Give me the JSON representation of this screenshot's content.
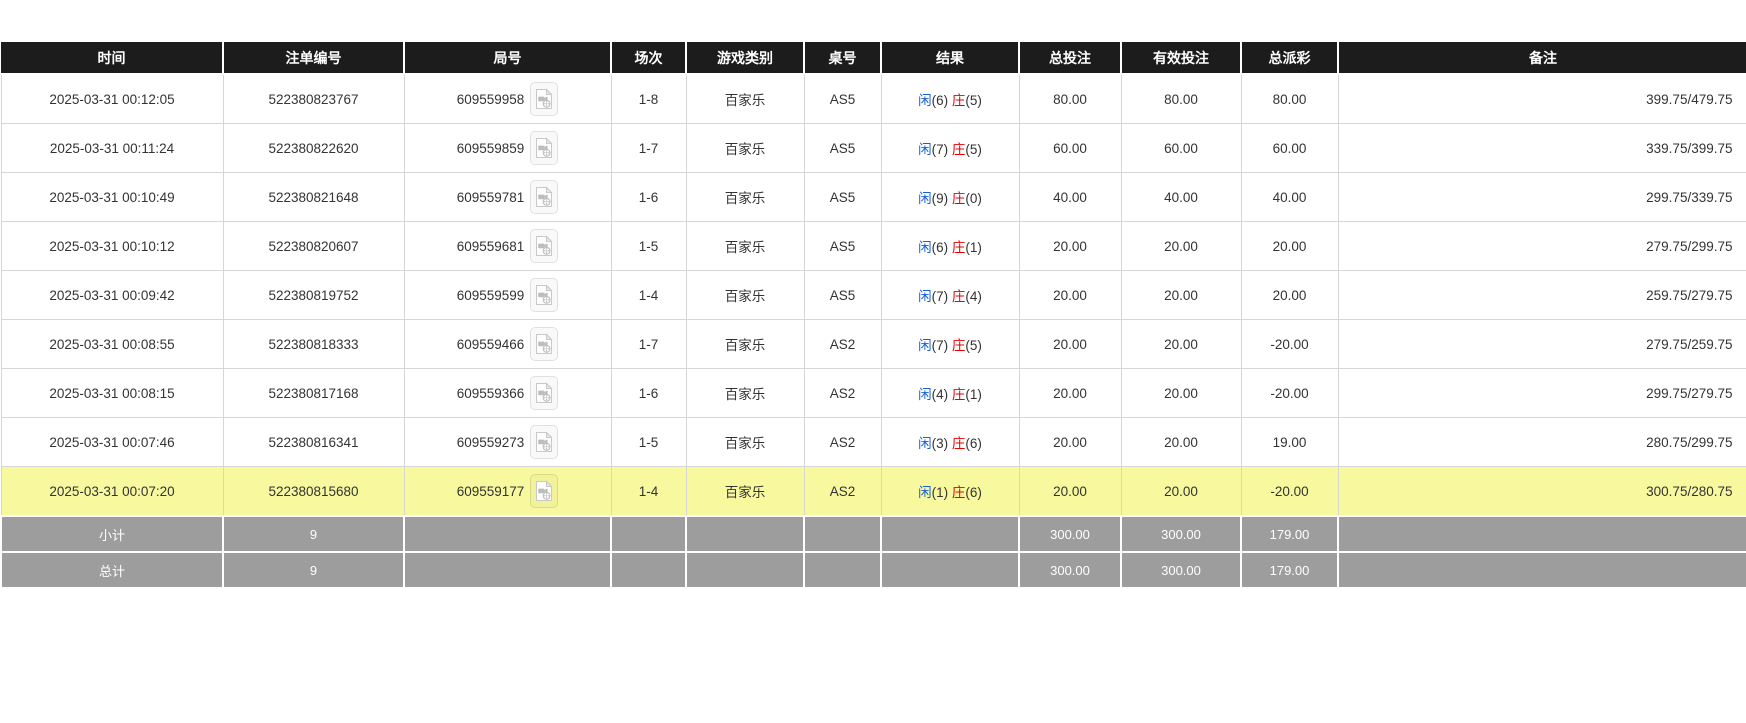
{
  "page": {
    "background": "#ffffff"
  },
  "colors": {
    "header_bg": "#1c1c1c",
    "header_text": "#ffffff",
    "row_text": "#333333",
    "grid_line": "#d6d6d6",
    "highlight_row_bg": "#f8f89e",
    "summary_row_bg": "#9d9d9d",
    "player_blue": "#1560d6",
    "banker_red": "#e60000",
    "amount_blue": "#1a73e8",
    "negative_red": "#e60000"
  },
  "header": {
    "columns": [
      {
        "key": "time",
        "label": "时间"
      },
      {
        "key": "bet_id",
        "label": "注单编号"
      },
      {
        "key": "round_id",
        "label": "局号"
      },
      {
        "key": "session",
        "label": "场次"
      },
      {
        "key": "game",
        "label": "游戏类别"
      },
      {
        "key": "table_no",
        "label": "桌号"
      },
      {
        "key": "result",
        "label": "结果"
      },
      {
        "key": "total_bet",
        "label": "总投注"
      },
      {
        "key": "valid_bet",
        "label": "有效投注"
      },
      {
        "key": "payout",
        "label": "总派彩"
      },
      {
        "key": "remark",
        "label": "备注"
      }
    ]
  },
  "icons": {
    "round_video": "video-file-icon"
  },
  "table": {
    "rows": [
      {
        "time": "2025-03-31 00:12:05",
        "bet_id": "522380823767",
        "round_id": "609559958",
        "session": "1-8",
        "game": "百家乐",
        "table_no": "AS5",
        "result": {
          "player_label": "闲",
          "player": "6",
          "banker_label": "庄",
          "banker": "5"
        },
        "total_bet": "80.00",
        "valid_bet": "80.00",
        "payout": "80.00",
        "remark": "399.75/479.75",
        "highlighted": false
      },
      {
        "time": "2025-03-31 00:11:24",
        "bet_id": "522380822620",
        "round_id": "609559859",
        "session": "1-7",
        "game": "百家乐",
        "table_no": "AS5",
        "result": {
          "player_label": "闲",
          "player": "7",
          "banker_label": "庄",
          "banker": "5"
        },
        "total_bet": "60.00",
        "valid_bet": "60.00",
        "payout": "60.00",
        "remark": "339.75/399.75",
        "highlighted": false
      },
      {
        "time": "2025-03-31 00:10:49",
        "bet_id": "522380821648",
        "round_id": "609559781",
        "session": "1-6",
        "game": "百家乐",
        "table_no": "AS5",
        "result": {
          "player_label": "闲",
          "player": "9",
          "banker_label": "庄",
          "banker": "0"
        },
        "total_bet": "40.00",
        "valid_bet": "40.00",
        "payout": "40.00",
        "remark": "299.75/339.75",
        "highlighted": false
      },
      {
        "time": "2025-03-31 00:10:12",
        "bet_id": "522380820607",
        "round_id": "609559681",
        "session": "1-5",
        "game": "百家乐",
        "table_no": "AS5",
        "result": {
          "player_label": "闲",
          "player": "6",
          "banker_label": "庄",
          "banker": "1"
        },
        "total_bet": "20.00",
        "valid_bet": "20.00",
        "payout": "20.00",
        "remark": "279.75/299.75",
        "highlighted": false
      },
      {
        "time": "2025-03-31 00:09:42",
        "bet_id": "522380819752",
        "round_id": "609559599",
        "session": "1-4",
        "game": "百家乐",
        "table_no": "AS5",
        "result": {
          "player_label": "闲",
          "player": "7",
          "banker_label": "庄",
          "banker": "4"
        },
        "total_bet": "20.00",
        "valid_bet": "20.00",
        "payout": "20.00",
        "remark": "259.75/279.75",
        "highlighted": false
      },
      {
        "time": "2025-03-31 00:08:55",
        "bet_id": "522380818333",
        "round_id": "609559466",
        "session": "1-7",
        "game": "百家乐",
        "table_no": "AS2",
        "result": {
          "player_label": "闲",
          "player": "7",
          "banker_label": "庄",
          "banker": "5"
        },
        "total_bet": "20.00",
        "valid_bet": "20.00",
        "payout": "-20.00",
        "remark": "279.75/259.75",
        "highlighted": false
      },
      {
        "time": "2025-03-31 00:08:15",
        "bet_id": "522380817168",
        "round_id": "609559366",
        "session": "1-6",
        "game": "百家乐",
        "table_no": "AS2",
        "result": {
          "player_label": "闲",
          "player": "4",
          "banker_label": "庄",
          "banker": "1"
        },
        "total_bet": "20.00",
        "valid_bet": "20.00",
        "payout": "-20.00",
        "remark": "299.75/279.75",
        "highlighted": false
      },
      {
        "time": "2025-03-31 00:07:46",
        "bet_id": "522380816341",
        "round_id": "609559273",
        "session": "1-5",
        "game": "百家乐",
        "table_no": "AS2",
        "result": {
          "player_label": "闲",
          "player": "3",
          "banker_label": "庄",
          "banker": "6"
        },
        "total_bet": "20.00",
        "valid_bet": "20.00",
        "payout": "19.00",
        "remark": "280.75/299.75",
        "highlighted": false
      },
      {
        "time": "2025-03-31 00:07:20",
        "bet_id": "522380815680",
        "round_id": "609559177",
        "session": "1-4",
        "game": "百家乐",
        "table_no": "AS2",
        "result": {
          "player_label": "闲",
          "player": "1",
          "banker_label": "庄",
          "banker": "6"
        },
        "total_bet": "20.00",
        "valid_bet": "20.00",
        "payout": "-20.00",
        "remark": "300.75/280.75",
        "highlighted": true
      }
    ],
    "summary_rows": [
      {
        "label": "小计",
        "count": "9",
        "total_bet": "300.00",
        "valid_bet": "300.00",
        "payout": "179.00",
        "remark": ""
      },
      {
        "label": "总计",
        "count": "9",
        "total_bet": "300.00",
        "valid_bet": "300.00",
        "payout": "179.00",
        "remark": ""
      }
    ]
  }
}
